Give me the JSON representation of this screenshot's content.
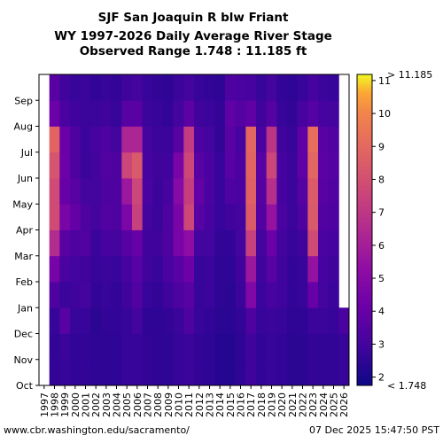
{
  "chart_data": {
    "type": "heatmap",
    "title_lines": [
      "SJF San Joaquin R blw Friant",
      "WY 1997-2026 Daily Average River Stage",
      "Observed Range 1.748 : 11.185 ft"
    ],
    "xlabel": "",
    "ylabel": "",
    "x_categories": [
      "1997",
      "1998",
      "1999",
      "2000",
      "2001",
      "2002",
      "2003",
      "2004",
      "2005",
      "2006",
      "2007",
      "2008",
      "2009",
      "2010",
      "2011",
      "2012",
      "2013",
      "2014",
      "2015",
      "2016",
      "2017",
      "2018",
      "2019",
      "2020",
      "2021",
      "2022",
      "2023",
      "2024",
      "2025",
      "2026"
    ],
    "y_categories": [
      "Oct",
      "Nov",
      "Dec",
      "Jan",
      "Feb",
      "Mar",
      "Apr",
      "May",
      "Jun",
      "Jul",
      "Aug",
      "Sep"
    ],
    "colorbar": {
      "label_max": "> 11.185",
      "label_min": "< 1.748",
      "ticks": [
        "2",
        "3",
        "4",
        "5",
        "6",
        "7",
        "8",
        "9",
        "10",
        "11"
      ],
      "min": 1.748,
      "max": 11.185
    },
    "monthly_stage_ft": [
      [
        null,
        null,
        null,
        null,
        null,
        null,
        null,
        null,
        null,
        null,
        null,
        null
      ],
      [
        2.6,
        2.6,
        2.7,
        3.3,
        4.5,
        6.5,
        7.8,
        7.8,
        8.2,
        8.8,
        4.2,
        3.6
      ],
      [
        2.7,
        2.8,
        3.6,
        2.8,
        3.2,
        3.6,
        4.6,
        4.0,
        4.2,
        4.1,
        3.2,
        2.9
      ],
      [
        2.6,
        2.6,
        2.7,
        2.9,
        3.0,
        3.3,
        3.9,
        3.6,
        3.3,
        3.3,
        2.9,
        2.7
      ],
      [
        2.6,
        2.6,
        2.7,
        3.0,
        2.9,
        3.4,
        3.3,
        3.0,
        2.8,
        2.8,
        2.8,
        2.8
      ],
      [
        2.5,
        2.5,
        2.4,
        2.6,
        2.7,
        2.8,
        3.0,
        3.0,
        3.0,
        3.1,
        2.8,
        2.6
      ],
      [
        2.5,
        2.5,
        2.6,
        2.7,
        2.8,
        3.1,
        3.4,
        3.3,
        3.4,
        3.3,
        2.9,
        2.7
      ],
      [
        2.5,
        2.5,
        2.6,
        2.6,
        2.7,
        3.0,
        3.3,
        3.3,
        3.3,
        3.0,
        2.7,
        2.6
      ],
      [
        2.7,
        2.7,
        2.7,
        2.9,
        3.1,
        3.6,
        4.7,
        5.7,
        7.6,
        6.3,
        3.6,
        2.9
      ],
      [
        2.7,
        2.7,
        3.0,
        3.4,
        3.6,
        4.0,
        7.4,
        7.6,
        8.4,
        6.3,
        3.6,
        3.0
      ],
      [
        2.6,
        2.6,
        2.5,
        2.7,
        2.9,
        2.9,
        3.0,
        3.2,
        3.1,
        3.0,
        2.8,
        2.7
      ],
      [
        2.5,
        2.5,
        2.5,
        2.6,
        2.7,
        2.9,
        2.8,
        2.8,
        2.9,
        2.8,
        2.7,
        2.6
      ],
      [
        2.5,
        2.5,
        2.6,
        2.9,
        3.2,
        3.3,
        3.3,
        3.1,
        2.9,
        2.8,
        2.6,
        2.5
      ],
      [
        2.7,
        2.7,
        2.8,
        3.3,
        3.6,
        4.6,
        4.6,
        5.0,
        4.6,
        3.6,
        3.0,
        2.8
      ],
      [
        2.8,
        2.8,
        3.3,
        3.6,
        4.2,
        5.2,
        7.6,
        7.3,
        7.6,
        7.2,
        3.7,
        3.0
      ],
      [
        2.6,
        2.6,
        2.7,
        2.7,
        2.7,
        3.0,
        3.6,
        3.9,
        3.6,
        3.3,
        2.9,
        2.7
      ],
      [
        2.5,
        2.5,
        2.6,
        2.8,
        2.8,
        3.0,
        3.1,
        3.2,
        3.2,
        3.0,
        2.8,
        2.6
      ],
      [
        2.3,
        2.3,
        2.4,
        2.5,
        2.5,
        2.6,
        2.7,
        2.7,
        2.7,
        2.6,
        2.6,
        2.5
      ],
      [
        2.3,
        2.3,
        2.4,
        2.4,
        2.5,
        2.6,
        2.9,
        3.3,
        3.6,
        3.6,
        3.8,
        3.3
      ],
      [
        2.5,
        2.5,
        2.6,
        2.8,
        2.9,
        3.0,
        3.0,
        3.2,
        3.2,
        3.1,
        3.5,
        3.2
      ],
      [
        2.9,
        2.9,
        3.3,
        4.8,
        5.7,
        7.4,
        8.5,
        8.7,
        8.8,
        8.9,
        3.8,
        3.1
      ],
      [
        2.6,
        2.6,
        2.7,
        2.8,
        2.9,
        3.0,
        3.4,
        3.5,
        3.6,
        3.2,
        2.9,
        2.7
      ],
      [
        2.7,
        2.7,
        2.8,
        3.1,
        3.6,
        4.1,
        5.5,
        6.7,
        7.6,
        6.9,
        3.5,
        3.0
      ],
      [
        2.6,
        2.6,
        2.7,
        2.9,
        2.9,
        3.0,
        3.2,
        3.1,
        3.1,
        2.9,
        2.7,
        2.6
      ],
      [
        2.4,
        2.4,
        2.5,
        2.6,
        2.6,
        2.7,
        2.8,
        2.8,
        2.8,
        2.7,
        2.6,
        2.5
      ],
      [
        2.4,
        2.4,
        2.5,
        2.7,
        2.7,
        2.9,
        3.3,
        3.5,
        3.8,
        3.8,
        3.1,
        2.7
      ],
      [
        2.6,
        2.6,
        2.8,
        4.0,
        5.5,
        7.8,
        8.4,
        8.5,
        8.9,
        9.2,
        3.5,
        3.1
      ],
      [
        2.6,
        2.6,
        2.8,
        3.0,
        3.1,
        3.2,
        3.4,
        3.6,
        3.7,
        3.6,
        3.1,
        2.8
      ],
      [
        2.6,
        2.6,
        2.7,
        2.8,
        2.9,
        3.1,
        3.3,
        3.4,
        3.5,
        3.4,
        3.0,
        2.7
      ],
      [
        2.7,
        2.7,
        3.2,
        null,
        null,
        null,
        null,
        null,
        null,
        null,
        null,
        null
      ]
    ]
  },
  "footer": {
    "source": "www.cbr.washington.edu/sacramento/",
    "timestamp": "07 Dec 2025 15:47:50 PST"
  }
}
